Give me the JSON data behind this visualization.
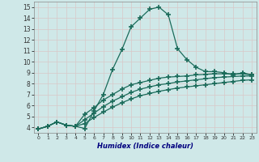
{
  "bg_color": "#cfe8e8",
  "grid_color": "#b8d8d8",
  "line_color": "#1a6b5a",
  "marker": "+",
  "markersize": 4,
  "markeredgewidth": 1.2,
  "linewidth": 0.9,
  "xlabel": "Humidex (Indice chaleur)",
  "xlabel_color": "#00007f",
  "xlim": [
    -0.5,
    23.5
  ],
  "ylim": [
    3.5,
    15.5
  ],
  "xticks": [
    0,
    1,
    2,
    3,
    4,
    5,
    6,
    7,
    8,
    9,
    10,
    11,
    12,
    13,
    14,
    15,
    16,
    17,
    18,
    19,
    20,
    21,
    22,
    23
  ],
  "yticks": [
    4,
    5,
    6,
    7,
    8,
    9,
    10,
    11,
    12,
    13,
    14,
    15
  ],
  "lines": [
    {
      "x": [
        0,
        1,
        2,
        3,
        4,
        5,
        6,
        7,
        8,
        9,
        10,
        11,
        12,
        13,
        14,
        15,
        16,
        17,
        18,
        19,
        20,
        21,
        22,
        23
      ],
      "y": [
        3.85,
        4.1,
        4.5,
        4.2,
        4.1,
        3.9,
        5.5,
        7.0,
        9.3,
        11.1,
        13.2,
        14.0,
        14.8,
        15.0,
        14.3,
        11.2,
        10.2,
        9.5,
        9.1,
        9.1,
        9.0,
        8.8,
        9.0,
        8.8
      ]
    },
    {
      "x": [
        0,
        1,
        2,
        3,
        4,
        5,
        6,
        7,
        8,
        9,
        10,
        11,
        12,
        13,
        14,
        15,
        16,
        17,
        18,
        19,
        20,
        21,
        22,
        23
      ],
      "y": [
        3.85,
        4.1,
        4.5,
        4.2,
        4.1,
        5.2,
        5.8,
        6.5,
        7.0,
        7.5,
        7.9,
        8.1,
        8.3,
        8.5,
        8.6,
        8.65,
        8.7,
        8.8,
        8.85,
        8.9,
        8.9,
        8.9,
        8.9,
        8.8
      ]
    },
    {
      "x": [
        0,
        1,
        2,
        3,
        4,
        5,
        6,
        7,
        8,
        9,
        10,
        11,
        12,
        13,
        14,
        15,
        16,
        17,
        18,
        19,
        20,
        21,
        22,
        23
      ],
      "y": [
        3.85,
        4.1,
        4.5,
        4.2,
        4.1,
        4.7,
        5.3,
        5.9,
        6.4,
        6.8,
        7.2,
        7.5,
        7.7,
        7.9,
        8.0,
        8.15,
        8.25,
        8.35,
        8.45,
        8.55,
        8.6,
        8.65,
        8.7,
        8.7
      ]
    },
    {
      "x": [
        0,
        1,
        2,
        3,
        4,
        5,
        6,
        7,
        8,
        9,
        10,
        11,
        12,
        13,
        14,
        15,
        16,
        17,
        18,
        19,
        20,
        21,
        22,
        23
      ],
      "y": [
        3.85,
        4.1,
        4.5,
        4.2,
        4.1,
        4.35,
        4.9,
        5.4,
        5.85,
        6.25,
        6.6,
        6.9,
        7.1,
        7.3,
        7.45,
        7.6,
        7.7,
        7.8,
        7.9,
        8.0,
        8.1,
        8.2,
        8.3,
        8.35
      ]
    }
  ]
}
